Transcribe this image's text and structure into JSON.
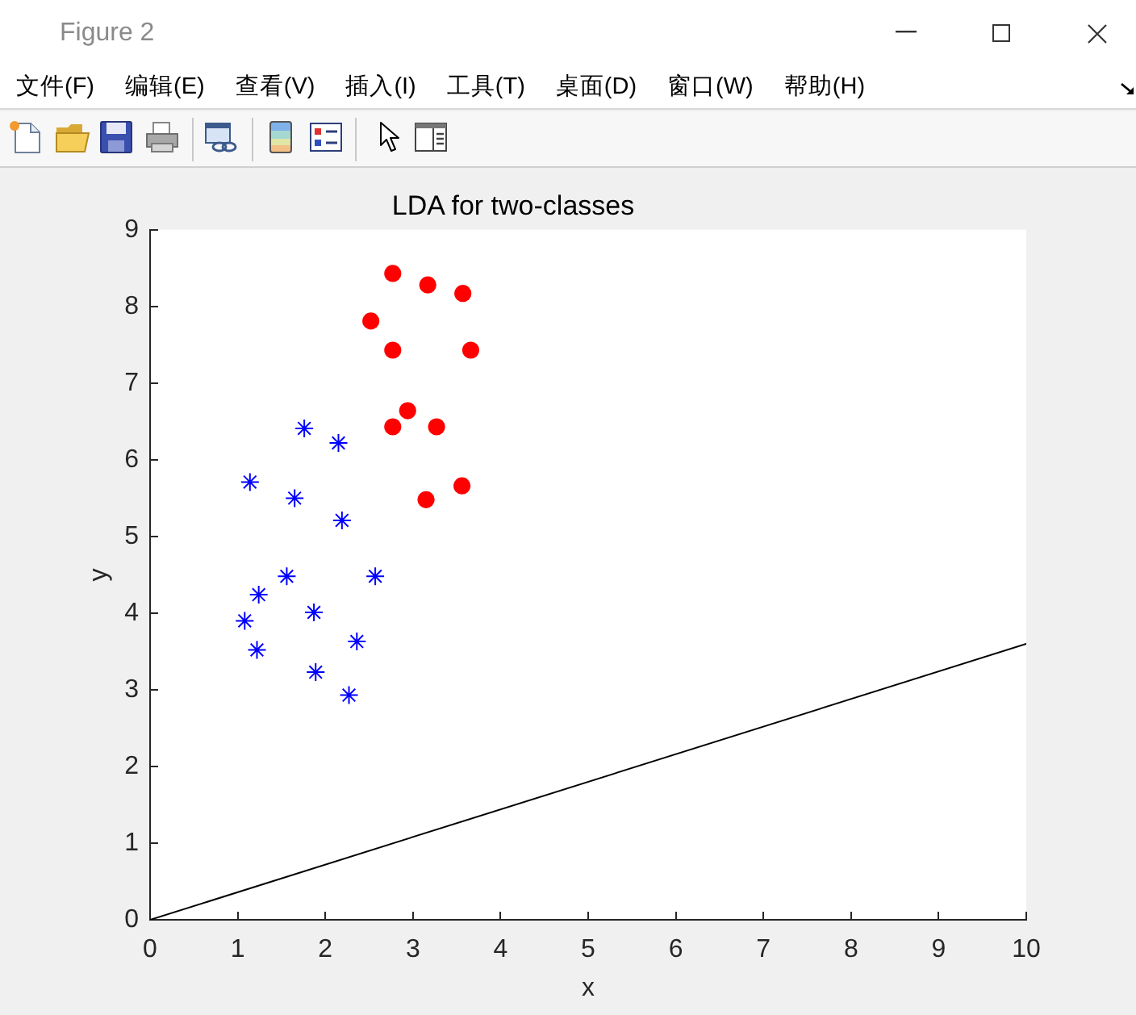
{
  "chart_data": {
    "type": "scatter",
    "title": "LDA for two-classes",
    "xlabel": "x",
    "ylabel": "y",
    "annotations": [
      "Figure 2",
      "文件(F)",
      "编辑(E)",
      "查看(V)",
      "插入(I)",
      "工具(T)",
      "桌面(D)",
      "窗口(W)",
      "帮助(H)"
    ],
    "series": [
      {
        "marker": "cross",
        "color": "#0000ff",
        "x": [
          1.76,
          2.15,
          1.14,
          1.65,
          2.19,
          1.56,
          2.57,
          1.24,
          1.08,
          1.87,
          2.36,
          1.22,
          1.89,
          2.27
        ],
        "values": [
          6.41,
          6.22,
          5.71,
          5.5,
          5.21,
          4.48,
          4.48,
          4.24,
          3.9,
          4.01,
          3.63,
          3.52,
          3.23,
          2.93
        ]
      },
      {
        "marker": "circle",
        "color": "#ff0000",
        "x": [
          2.77,
          3.17,
          3.57,
          2.52,
          2.77,
          3.66,
          2.94,
          2.77,
          3.27,
          3.56,
          3.15
        ],
        "values": [
          8.43,
          8.28,
          8.17,
          7.81,
          7.43,
          7.43,
          6.64,
          6.43,
          6.43,
          5.66,
          5.48
        ]
      },
      {
        "type": "line",
        "marker": "none",
        "line_style": "solid",
        "color": "#000000",
        "x": [
          0,
          10
        ],
        "values": [
          0,
          3.6
        ]
      }
    ],
    "xlim": [
      0,
      10
    ],
    "ylim": [
      0,
      9
    ],
    "xticks": [
      0,
      1,
      2,
      3,
      4,
      5,
      6,
      7,
      8,
      9,
      10
    ],
    "yticks": [
      0,
      1,
      2,
      3,
      4,
      5,
      6,
      7,
      8,
      9
    ],
    "grid": false,
    "legend": false
  }
}
